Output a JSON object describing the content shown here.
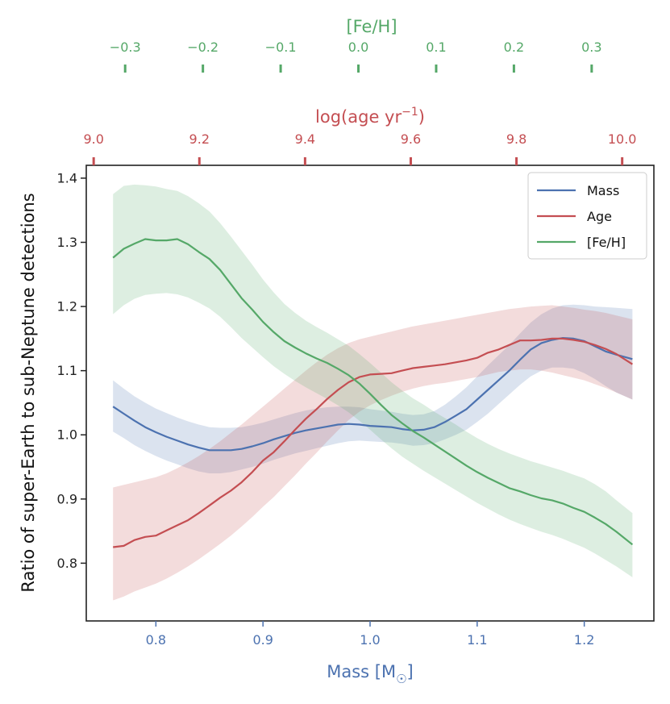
{
  "chart_data": {
    "type": "line",
    "ylabel": "Ratio of super-Earth to sub-Neptune detections",
    "ylim": [
      0.71,
      1.42
    ],
    "yticks": [
      "0.8",
      "0.9",
      "1.0",
      "1.1",
      "1.2",
      "1.3",
      "1.4"
    ],
    "axes": {
      "mass": {
        "label_main": "Mass [M",
        "label_symbol": "☉",
        "label_close": "]",
        "color": "#4c72b0",
        "range": [
          0.735,
          1.265
        ],
        "ticks": [
          "0.8",
          "0.9",
          "1.0",
          "1.1",
          "1.2"
        ]
      },
      "age": {
        "label_main": "log(age yr",
        "label_sup": "−1",
        "label_close": ")",
        "color": "#c44e52",
        "range": [
          8.986,
          10.06
        ],
        "ticks": [
          "9.0",
          "9.2",
          "9.4",
          "9.6",
          "9.8",
          "10.0"
        ]
      },
      "feh": {
        "label": "[Fe/H]",
        "color": "#55a868",
        "range": [
          -0.35,
          0.38
        ],
        "ticks": [
          "−0.3",
          "−0.2",
          "−0.1",
          "0.0",
          "0.1",
          "0.2",
          "0.3"
        ]
      }
    },
    "legend": {
      "position": "top-right",
      "entries": [
        "Mass",
        "Age",
        "[Fe/H]"
      ]
    },
    "series": [
      {
        "name": "Mass",
        "color": "#4c72b0",
        "x": [
          0.76,
          0.77,
          0.78,
          0.79,
          0.8,
          0.81,
          0.82,
          0.83,
          0.84,
          0.85,
          0.86,
          0.87,
          0.88,
          0.89,
          0.9,
          0.91,
          0.92,
          0.93,
          0.94,
          0.95,
          0.96,
          0.97,
          0.98,
          0.99,
          1.0,
          1.01,
          1.02,
          1.03,
          1.04,
          1.05,
          1.06,
          1.07,
          1.08,
          1.09,
          1.1,
          1.11,
          1.12,
          1.13,
          1.14,
          1.15,
          1.16,
          1.17,
          1.18,
          1.19,
          1.2,
          1.21,
          1.22,
          1.23,
          1.245
        ],
        "y": [
          1.044,
          1.033,
          1.022,
          1.012,
          1.004,
          0.997,
          0.991,
          0.985,
          0.98,
          0.976,
          0.976,
          0.976,
          0.978,
          0.982,
          0.987,
          0.993,
          0.998,
          1.003,
          1.007,
          1.01,
          1.013,
          1.016,
          1.017,
          1.016,
          1.014,
          1.013,
          1.012,
          1.009,
          1.007,
          1.008,
          1.012,
          1.02,
          1.03,
          1.04,
          1.055,
          1.07,
          1.085,
          1.1,
          1.117,
          1.133,
          1.143,
          1.148,
          1.151,
          1.15,
          1.146,
          1.138,
          1.13,
          1.125,
          1.118
        ],
        "lower": [
          1.005,
          0.995,
          0.984,
          0.975,
          0.967,
          0.96,
          0.954,
          0.948,
          0.943,
          0.94,
          0.94,
          0.942,
          0.946,
          0.95,
          0.955,
          0.961,
          0.966,
          0.971,
          0.975,
          0.979,
          0.983,
          0.987,
          0.99,
          0.991,
          0.99,
          0.989,
          0.988,
          0.986,
          0.983,
          0.984,
          0.987,
          0.993,
          1.0,
          1.008,
          1.02,
          1.033,
          1.048,
          1.063,
          1.078,
          1.091,
          1.1,
          1.105,
          1.105,
          1.103,
          1.096,
          1.087,
          1.076,
          1.066,
          1.055
        ],
        "upper": [
          1.085,
          1.072,
          1.06,
          1.05,
          1.041,
          1.034,
          1.027,
          1.021,
          1.016,
          1.012,
          1.011,
          1.011,
          1.012,
          1.015,
          1.019,
          1.024,
          1.029,
          1.034,
          1.038,
          1.041,
          1.043,
          1.044,
          1.044,
          1.043,
          1.04,
          1.038,
          1.036,
          1.033,
          1.031,
          1.032,
          1.037,
          1.047,
          1.06,
          1.074,
          1.091,
          1.108,
          1.124,
          1.14,
          1.158,
          1.175,
          1.188,
          1.197,
          1.202,
          1.203,
          1.202,
          1.2,
          1.199,
          1.198,
          1.196
        ]
      },
      {
        "name": "Age",
        "color": "#c44e52",
        "x": [
          0.76,
          0.77,
          0.78,
          0.79,
          0.8,
          0.81,
          0.82,
          0.83,
          0.84,
          0.85,
          0.86,
          0.87,
          0.88,
          0.89,
          0.9,
          0.91,
          0.92,
          0.93,
          0.94,
          0.95,
          0.96,
          0.97,
          0.98,
          0.99,
          1.0,
          1.01,
          1.02,
          1.03,
          1.04,
          1.05,
          1.06,
          1.07,
          1.08,
          1.09,
          1.1,
          1.11,
          1.12,
          1.13,
          1.14,
          1.15,
          1.16,
          1.17,
          1.18,
          1.19,
          1.2,
          1.21,
          1.22,
          1.23,
          1.245
        ],
        "y": [
          0.825,
          0.827,
          0.836,
          0.841,
          0.843,
          0.851,
          0.859,
          0.867,
          0.878,
          0.89,
          0.902,
          0.913,
          0.926,
          0.942,
          0.96,
          0.973,
          0.99,
          1.008,
          1.025,
          1.04,
          1.056,
          1.07,
          1.082,
          1.09,
          1.094,
          1.095,
          1.096,
          1.1,
          1.104,
          1.106,
          1.108,
          1.11,
          1.113,
          1.116,
          1.12,
          1.128,
          1.133,
          1.14,
          1.147,
          1.147,
          1.148,
          1.15,
          1.15,
          1.148,
          1.145,
          1.14,
          1.134,
          1.126,
          1.11
        ],
        "lower": [
          0.742,
          0.748,
          0.756,
          0.762,
          0.768,
          0.776,
          0.785,
          0.795,
          0.806,
          0.818,
          0.83,
          0.843,
          0.857,
          0.872,
          0.888,
          0.903,
          0.92,
          0.937,
          0.955,
          0.972,
          0.99,
          1.007,
          1.023,
          1.036,
          1.046,
          1.054,
          1.061,
          1.067,
          1.072,
          1.076,
          1.079,
          1.081,
          1.084,
          1.087,
          1.09,
          1.094,
          1.098,
          1.1,
          1.102,
          1.102,
          1.1,
          1.097,
          1.093,
          1.089,
          1.085,
          1.079,
          1.073,
          1.066,
          1.055
        ],
        "upper": [
          0.918,
          0.922,
          0.926,
          0.93,
          0.934,
          0.94,
          0.948,
          0.957,
          0.967,
          0.978,
          0.99,
          1.003,
          1.016,
          1.03,
          1.044,
          1.058,
          1.072,
          1.086,
          1.1,
          1.113,
          1.125,
          1.135,
          1.143,
          1.149,
          1.153,
          1.157,
          1.161,
          1.165,
          1.169,
          1.172,
          1.175,
          1.178,
          1.181,
          1.184,
          1.187,
          1.19,
          1.193,
          1.196,
          1.198,
          1.2,
          1.201,
          1.202,
          1.2,
          1.198,
          1.195,
          1.193,
          1.19,
          1.186,
          1.18
        ]
      },
      {
        "name": "[Fe/H]",
        "color": "#55a868",
        "x": [
          0.76,
          0.77,
          0.78,
          0.79,
          0.8,
          0.81,
          0.82,
          0.83,
          0.84,
          0.85,
          0.86,
          0.87,
          0.88,
          0.89,
          0.9,
          0.91,
          0.92,
          0.93,
          0.94,
          0.95,
          0.96,
          0.97,
          0.98,
          0.99,
          1.0,
          1.01,
          1.02,
          1.03,
          1.04,
          1.05,
          1.06,
          1.07,
          1.08,
          1.09,
          1.1,
          1.11,
          1.12,
          1.13,
          1.14,
          1.15,
          1.16,
          1.17,
          1.18,
          1.19,
          1.2,
          1.21,
          1.22,
          1.23,
          1.245
        ],
        "y": [
          1.276,
          1.29,
          1.298,
          1.305,
          1.303,
          1.303,
          1.305,
          1.297,
          1.285,
          1.274,
          1.257,
          1.235,
          1.213,
          1.195,
          1.176,
          1.16,
          1.146,
          1.136,
          1.127,
          1.119,
          1.112,
          1.103,
          1.093,
          1.08,
          1.064,
          1.047,
          1.031,
          1.018,
          1.006,
          0.996,
          0.985,
          0.974,
          0.963,
          0.952,
          0.942,
          0.933,
          0.925,
          0.917,
          0.912,
          0.906,
          0.901,
          0.898,
          0.893,
          0.886,
          0.88,
          0.871,
          0.861,
          0.849,
          0.829
        ],
        "lower": [
          1.188,
          1.202,
          1.212,
          1.218,
          1.22,
          1.221,
          1.219,
          1.214,
          1.206,
          1.197,
          1.184,
          1.168,
          1.151,
          1.136,
          1.121,
          1.107,
          1.095,
          1.084,
          1.074,
          1.065,
          1.056,
          1.046,
          1.035,
          1.022,
          1.008,
          0.993,
          0.979,
          0.966,
          0.955,
          0.944,
          0.934,
          0.924,
          0.914,
          0.904,
          0.894,
          0.885,
          0.876,
          0.868,
          0.861,
          0.855,
          0.849,
          0.844,
          0.838,
          0.831,
          0.824,
          0.815,
          0.805,
          0.795,
          0.778
        ],
        "upper": [
          1.375,
          1.388,
          1.39,
          1.389,
          1.387,
          1.383,
          1.38,
          1.372,
          1.361,
          1.348,
          1.33,
          1.309,
          1.287,
          1.265,
          1.242,
          1.222,
          1.204,
          1.19,
          1.178,
          1.168,
          1.159,
          1.149,
          1.139,
          1.126,
          1.112,
          1.097,
          1.082,
          1.069,
          1.057,
          1.047,
          1.036,
          1.026,
          1.016,
          1.005,
          0.995,
          0.986,
          0.978,
          0.971,
          0.965,
          0.959,
          0.954,
          0.949,
          0.944,
          0.938,
          0.932,
          0.923,
          0.912,
          0.898,
          0.878
        ]
      }
    ]
  }
}
